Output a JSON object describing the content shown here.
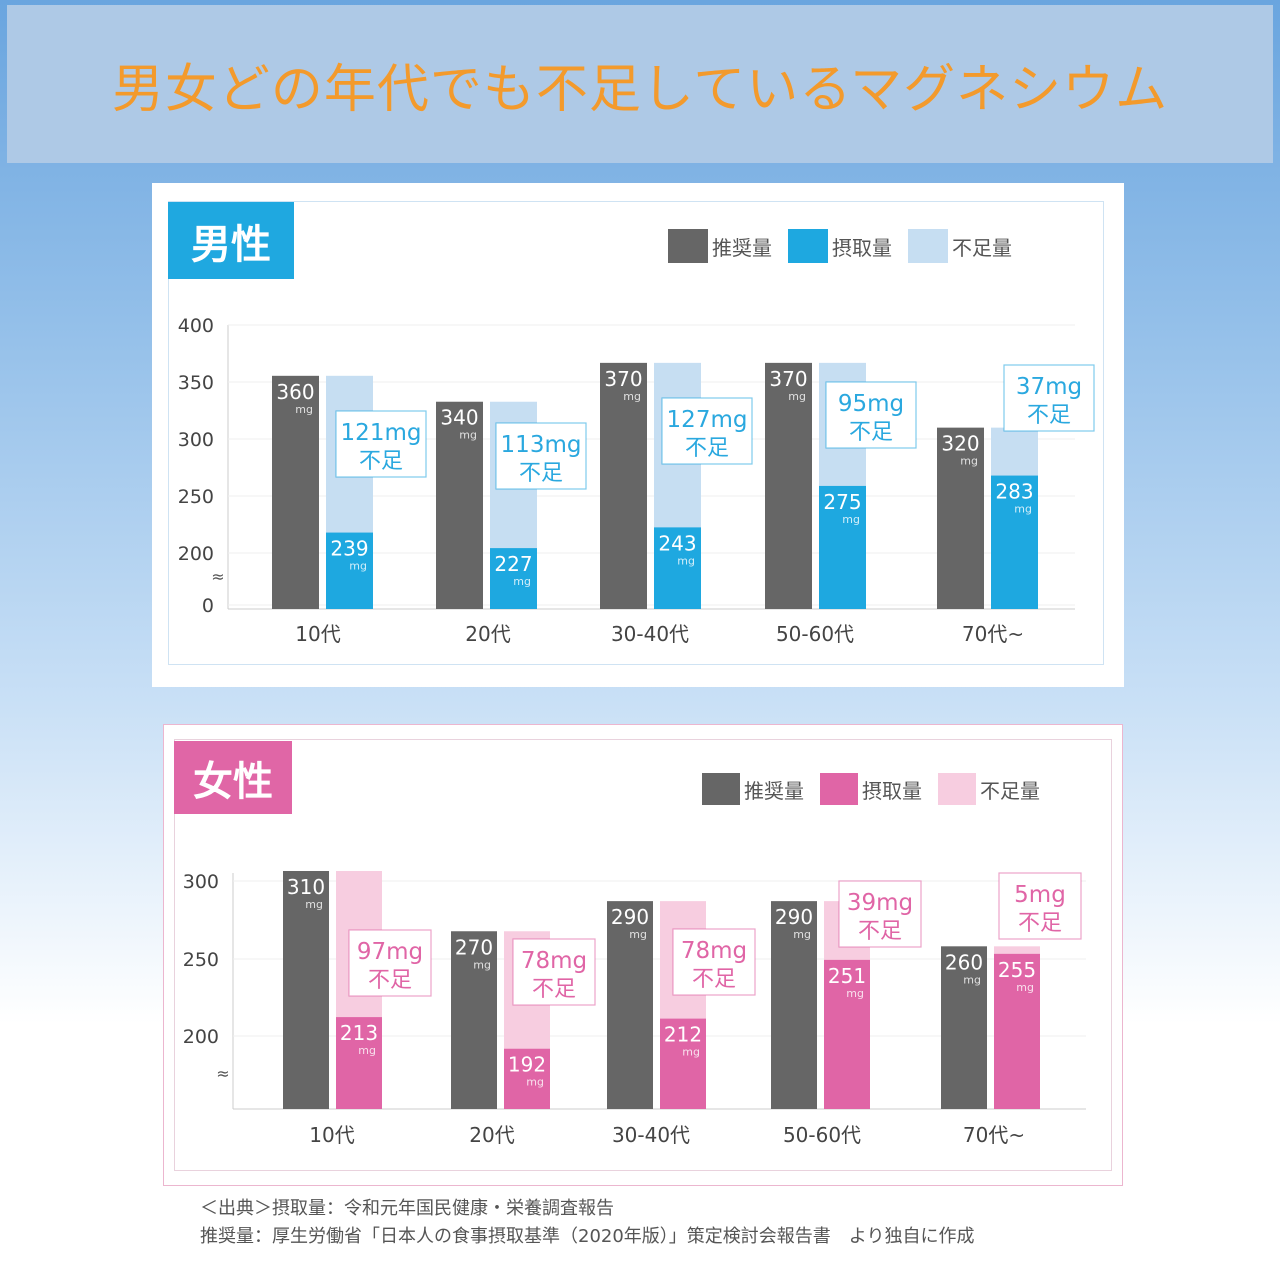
{
  "title": "男女どの年代でも不足しているマグネシウム",
  "legend": {
    "recommended": "推奨量",
    "intake": "摂取量",
    "shortage": "不足量"
  },
  "unit": "mg",
  "shortage_suffix": "不足",
  "colors": {
    "recommended": "#666666",
    "male_intake": "#1ea8e0",
    "male_shortage": "#c6def2",
    "male_label": "#2aa8df",
    "female_intake": "#e065a6",
    "female_shortage": "#f7cde0",
    "female_label": "#e065a6"
  },
  "male": {
    "tag": "男性"
  },
  "female": {
    "tag": "女性"
  },
  "chart_data": [
    {
      "type": "bar",
      "title": "男性",
      "categories": [
        "10代",
        "20代",
        "30-40代",
        "50-60代",
        "70代~"
      ],
      "series": [
        {
          "name": "推奨量",
          "values": [
            360,
            340,
            370,
            370,
            320
          ]
        },
        {
          "name": "摂取量",
          "values": [
            239,
            227,
            243,
            275,
            283
          ]
        },
        {
          "name": "不足量",
          "values": [
            121,
            113,
            127,
            95,
            37
          ]
        }
      ],
      "yticks": [
        "400",
        "350",
        "300",
        "250",
        "200",
        "0"
      ],
      "ylim": [
        180,
        400
      ],
      "axis_break": true,
      "shortage_labels": [
        "121mg",
        "113mg",
        "127mg",
        "95mg",
        "37mg"
      ]
    },
    {
      "type": "bar",
      "title": "女性",
      "categories": [
        "10代",
        "20代",
        "30-40代",
        "50-60代",
        "70代~"
      ],
      "series": [
        {
          "name": "推奨量",
          "values": [
            310,
            270,
            290,
            290,
            260
          ]
        },
        {
          "name": "摂取量",
          "values": [
            213,
            192,
            212,
            251,
            255
          ]
        },
        {
          "name": "不足量",
          "values": [
            97,
            78,
            78,
            39,
            5
          ]
        }
      ],
      "yticks": [
        "300",
        "250",
        "200"
      ],
      "ylim": [
        152,
        310
      ],
      "axis_break": true,
      "shortage_labels": [
        "97mg",
        "78mg",
        "78mg",
        "39mg",
        "5mg"
      ]
    }
  ],
  "source": {
    "line1": "＜出典＞摂取量：令和元年国民健康・栄養調査報告",
    "line2": "推奨量：厚生労働省「日本人の食事摂取基準（2020年版）」策定検討会報告書　より独自に作成"
  }
}
